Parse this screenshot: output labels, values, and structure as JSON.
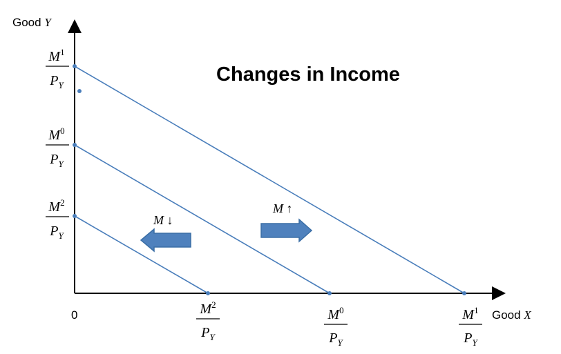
{
  "title": "Changes in Income",
  "axes": {
    "y_label_prefix": "Good ",
    "y_label_var": "Y",
    "x_label_prefix": "Good ",
    "x_label_var": "X",
    "origin": "0"
  },
  "fractions": {
    "m1": {
      "num_base": "M",
      "num_sup": "1",
      "den_base": "P",
      "den_sub": "Y"
    },
    "m0": {
      "num_base": "M",
      "num_sup": "0",
      "den_base": "P",
      "den_sub": "Y"
    },
    "m2": {
      "num_base": "M",
      "num_sup": "2",
      "den_base": "P",
      "den_sub": "Y"
    }
  },
  "arrows": {
    "increase_label": "M ↑",
    "decrease_label": "M ↓"
  },
  "colors": {
    "line": "#4a7ebb",
    "arrow_fill": "#4f81bd",
    "arrow_stroke": "#3a6ea5",
    "axis": "#000000",
    "text": "#000000"
  }
}
